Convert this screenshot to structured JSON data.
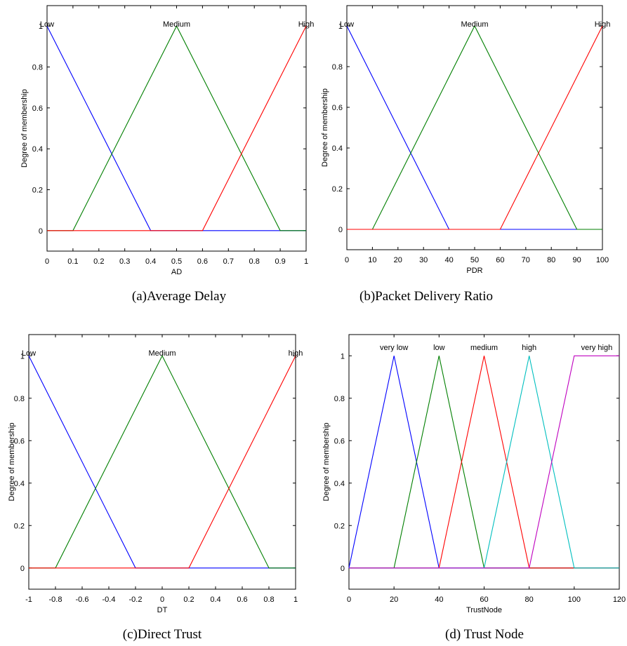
{
  "colors": {
    "blue": "#0000ff",
    "green": "#007f00",
    "red": "#ff0000",
    "cyan": "#00bfbf",
    "magenta": "#bf00bf"
  },
  "chart_data": [
    {
      "id": "a",
      "type": "line",
      "caption": "(a)Average Delay",
      "xlabel": "AD",
      "ylabel": "Degree of membership",
      "xlim": [
        0,
        1
      ],
      "ylim": [
        -0.1,
        1.1
      ],
      "xticks": [
        0,
        0.1,
        0.2,
        0.3,
        0.4,
        0.5,
        0.6,
        0.7,
        0.8,
        0.9,
        1
      ],
      "xtick_labels": [
        "0",
        "0.1",
        "0.2",
        "0.3",
        "0.4",
        "0.5",
        "0.6",
        "0.7",
        "0.8",
        "0.9",
        "1"
      ],
      "yticks": [
        0,
        0.2,
        0.4,
        0.6,
        0.8,
        1
      ],
      "ytick_labels": [
        "0",
        "0.2",
        "0.4",
        "0.6",
        "0.8",
        "1"
      ],
      "series": [
        {
          "name": "Low",
          "color": "blue",
          "points": [
            [
              0,
              1
            ],
            [
              0.4,
              0
            ],
            [
              1,
              0
            ]
          ]
        },
        {
          "name": "Medium",
          "color": "green",
          "points": [
            [
              0,
              0
            ],
            [
              0.1,
              0
            ],
            [
              0.5,
              1
            ],
            [
              0.9,
              0
            ],
            [
              1,
              0
            ]
          ]
        },
        {
          "name": "High",
          "color": "red",
          "points": [
            [
              0,
              0
            ],
            [
              0.6,
              0
            ],
            [
              1,
              1
            ]
          ]
        }
      ]
    },
    {
      "id": "b",
      "type": "line",
      "caption": "(b)Packet Delivery Ratio",
      "xlabel": "PDR",
      "ylabel": "Degree of membership",
      "xlim": [
        0,
        100
      ],
      "ylim": [
        -0.1,
        1.1
      ],
      "xticks": [
        0,
        10,
        20,
        30,
        40,
        50,
        60,
        70,
        80,
        90,
        100
      ],
      "xtick_labels": [
        "0",
        "10",
        "20",
        "30",
        "40",
        "50",
        "60",
        "70",
        "80",
        "90",
        "100"
      ],
      "yticks": [
        0,
        0.2,
        0.4,
        0.6,
        0.8,
        1
      ],
      "ytick_labels": [
        "0",
        "0.2",
        "0.4",
        "0.6",
        "0.8",
        "1"
      ],
      "series": [
        {
          "name": "Low",
          "color": "blue",
          "points": [
            [
              0,
              1
            ],
            [
              40,
              0
            ],
            [
              100,
              0
            ]
          ]
        },
        {
          "name": "Medium",
          "color": "green",
          "points": [
            [
              0,
              0
            ],
            [
              10,
              0
            ],
            [
              50,
              1
            ],
            [
              90,
              0
            ],
            [
              100,
              0
            ]
          ]
        },
        {
          "name": "High",
          "color": "red",
          "points": [
            [
              0,
              0
            ],
            [
              60,
              0
            ],
            [
              100,
              1
            ]
          ]
        }
      ]
    },
    {
      "id": "c",
      "type": "line",
      "caption": "(c)Direct Trust",
      "xlabel": "DT",
      "ylabel": "Degree of membership",
      "xlim": [
        -1,
        1
      ],
      "ylim": [
        -0.1,
        1.1
      ],
      "xticks": [
        -1,
        -0.8,
        -0.6,
        -0.4,
        -0.2,
        0,
        0.2,
        0.4,
        0.6,
        0.8,
        1
      ],
      "xtick_labels": [
        "-1",
        "-0.8",
        "-0.6",
        "-0.4",
        "-0.2",
        "0",
        "0.2",
        "0.4",
        "0.6",
        "0.8",
        "1"
      ],
      "yticks": [
        0,
        0.2,
        0.4,
        0.6,
        0.8,
        1
      ],
      "ytick_labels": [
        "0",
        "0.2",
        "0.4",
        "0.6",
        "0.8",
        "1"
      ],
      "series": [
        {
          "name": "Low",
          "color": "blue",
          "points": [
            [
              -1,
              1
            ],
            [
              -0.2,
              0
            ],
            [
              1,
              0
            ]
          ]
        },
        {
          "name": "Medium",
          "color": "green",
          "points": [
            [
              -1,
              0
            ],
            [
              -0.8,
              0
            ],
            [
              0,
              1
            ],
            [
              0.8,
              0
            ],
            [
              1,
              0
            ]
          ]
        },
        {
          "name": "high",
          "color": "red",
          "points": [
            [
              -1,
              0
            ],
            [
              0.2,
              0
            ],
            [
              1,
              1
            ]
          ]
        }
      ]
    },
    {
      "id": "d",
      "type": "line",
      "caption": "(d) Trust Node",
      "xlabel": "TrustNode",
      "ylabel": "Degree of membership",
      "xlim": [
        0,
        120
      ],
      "ylim": [
        -0.1,
        1.1
      ],
      "xticks": [
        0,
        20,
        40,
        60,
        80,
        100,
        120
      ],
      "xtick_labels": [
        "0",
        "20",
        "40",
        "60",
        "80",
        "100",
        "120"
      ],
      "yticks": [
        0,
        0.2,
        0.4,
        0.6,
        0.8,
        1
      ],
      "ytick_labels": [
        "0",
        "0.2",
        "0.4",
        "0.6",
        "0.8",
        "1"
      ],
      "series": [
        {
          "name": "very low",
          "color": "blue",
          "points": [
            [
              0,
              0
            ],
            [
              20,
              1
            ],
            [
              40,
              0
            ],
            [
              120,
              0
            ]
          ]
        },
        {
          "name": "low",
          "color": "green",
          "points": [
            [
              0,
              0
            ],
            [
              20,
              0
            ],
            [
              40,
              1
            ],
            [
              60,
              0
            ],
            [
              120,
              0
            ]
          ]
        },
        {
          "name": "medium",
          "color": "red",
          "points": [
            [
              0,
              0
            ],
            [
              40,
              0
            ],
            [
              60,
              1
            ],
            [
              80,
              0
            ],
            [
              120,
              0
            ]
          ]
        },
        {
          "name": "high",
          "color": "cyan",
          "points": [
            [
              0,
              0
            ],
            [
              60,
              0
            ],
            [
              80,
              1
            ],
            [
              100,
              0
            ],
            [
              120,
              0
            ]
          ]
        },
        {
          "name": "very high",
          "color": "magenta",
          "points": [
            [
              0,
              0
            ],
            [
              80,
              0
            ],
            [
              100,
              1
            ],
            [
              120,
              1
            ]
          ]
        }
      ]
    }
  ]
}
